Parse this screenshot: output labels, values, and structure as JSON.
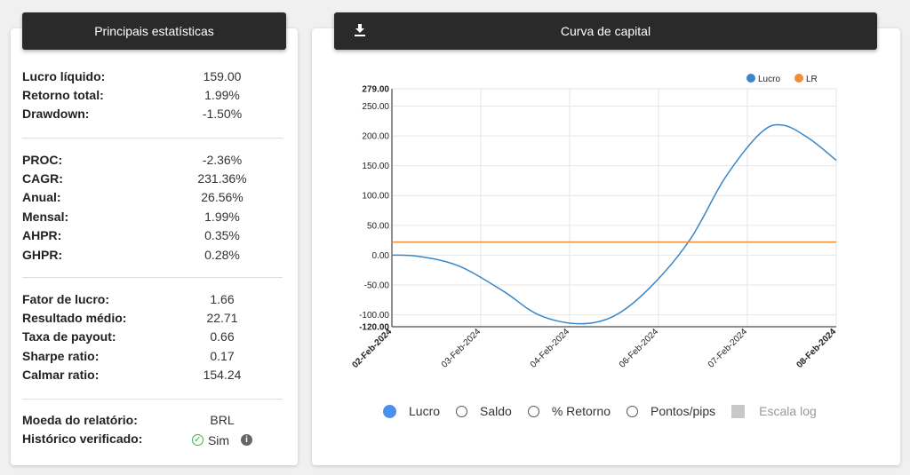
{
  "stats": {
    "title": "Principais estatísticas",
    "group1": [
      {
        "label": "Lucro líquido:",
        "value": "159.00"
      },
      {
        "label": "Retorno total:",
        "value": "1.99%"
      },
      {
        "label": "Drawdown:",
        "value": "-1.50%"
      }
    ],
    "group2": [
      {
        "label": "PROC:",
        "value": "-2.36%"
      },
      {
        "label": "CAGR:",
        "value": "231.36%"
      },
      {
        "label": "Anual:",
        "value": "26.56%"
      },
      {
        "label": "Mensal:",
        "value": "1.99%"
      },
      {
        "label": "AHPR:",
        "value": "0.35%"
      },
      {
        "label": "GHPR:",
        "value": "0.28%"
      }
    ],
    "group3": [
      {
        "label": "Fator de lucro:",
        "value": "1.66"
      },
      {
        "label": "Resultado médio:",
        "value": "22.71"
      },
      {
        "label": "Taxa de payout:",
        "value": "0.66"
      },
      {
        "label": "Sharpe ratio:",
        "value": "0.17"
      },
      {
        "label": "Calmar ratio:",
        "value": "154.24"
      }
    ],
    "group4": [
      {
        "label": "Moeda do relatório:",
        "value": "BRL"
      },
      {
        "label": "Histórico verificado:",
        "value": "Sim"
      }
    ]
  },
  "chart_panel": {
    "title": "Curva de capital",
    "download_icon": "download-icon",
    "options": [
      {
        "label": "Lucro",
        "checked": true
      },
      {
        "label": "Saldo",
        "checked": false
      },
      {
        "label": "% Retorno",
        "checked": false
      },
      {
        "label": "Pontos/pips",
        "checked": false
      }
    ],
    "log_scale_label": "Escala log"
  },
  "chart_data": {
    "type": "line",
    "legend_position": "top-right",
    "grid": true,
    "ylim": [
      -120,
      279
    ],
    "y_ticks": [
      "279.00",
      "250.00",
      "200.00",
      "150.00",
      "100.00",
      "50.00",
      "0.00",
      "-50.00",
      "-100.00",
      "-120.00"
    ],
    "y_tick_values": [
      279,
      250,
      200,
      150,
      100,
      50,
      0,
      -50,
      -100,
      -120
    ],
    "x_ticks": [
      "02-Feb-2024",
      "03-Feb-2024",
      "04-Feb-2024",
      "06-Feb-2024",
      "07-Feb-2024",
      "08-Feb-2024"
    ],
    "x_bold_ticks": [
      "02-Feb-2024",
      "08-Feb-2024"
    ],
    "series": [
      {
        "name": "Lucro",
        "color": "#3a86c8",
        "x": [
          0,
          0.06,
          0.15,
          0.25,
          0.33,
          0.42,
          0.5,
          0.58,
          0.67,
          0.75,
          0.83,
          0.88,
          0.94,
          1.0
        ],
        "values": [
          0,
          -2,
          -18,
          -60,
          -100,
          -115,
          -102,
          -55,
          25,
          130,
          205,
          218,
          195,
          159
        ]
      },
      {
        "name": "LR",
        "color": "#f28c38",
        "x": [
          0,
          1
        ],
        "values": [
          22,
          22
        ]
      }
    ]
  }
}
